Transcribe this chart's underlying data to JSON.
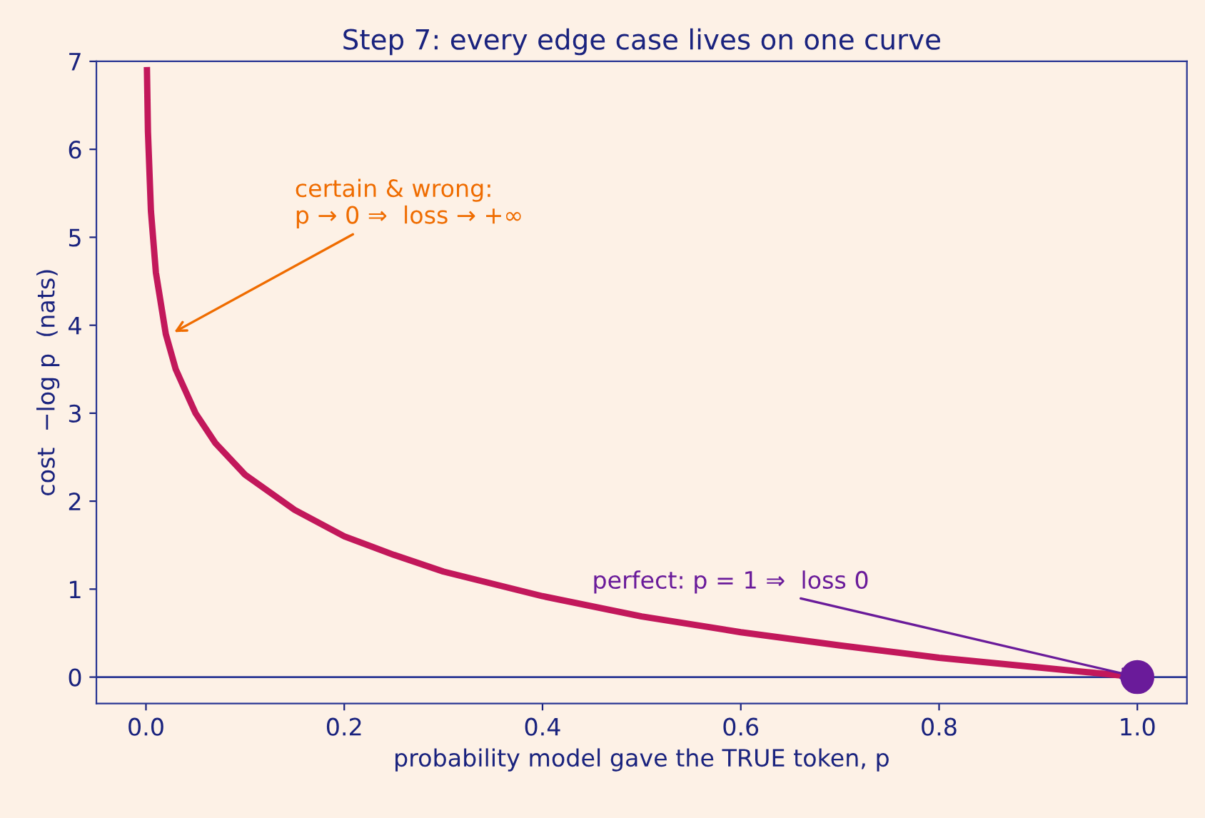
{
  "chart_data": {
    "type": "line",
    "title": "Step 7: every edge case lives on one curve",
    "xlabel": "probability model gave the TRUE token, p",
    "ylabel": "cost  −log p  (nats)",
    "series": [
      {
        "color": "#c2185b",
        "x": [
          0.001,
          0.002,
          0.005,
          0.01,
          0.02,
          0.03,
          0.05,
          0.07,
          0.1,
          0.15,
          0.2,
          0.25,
          0.3,
          0.4,
          0.5,
          0.6,
          0.7,
          0.8,
          0.9,
          1.0
        ],
        "values": [
          6.9,
          6.2,
          5.3,
          4.6,
          3.9,
          3.5,
          3.0,
          2.66,
          2.3,
          1.9,
          1.6,
          1.39,
          1.2,
          0.92,
          0.69,
          0.51,
          0.36,
          0.22,
          0.11,
          0
        ]
      },
      {
        "type": "scatter",
        "color": "#6a1b9a",
        "x": [
          1.0
        ],
        "values": [
          0
        ]
      }
    ],
    "annotations": [
      {
        "text": "certain & wrong:\np → 0 ⇒  loss → +∞",
        "x": 0.025,
        "y": 3.9
      },
      {
        "text": "perfect: p = 1 ⇒  loss 0",
        "x": 1.0,
        "y": 0
      }
    ],
    "ref_lines": [
      {
        "axis": "y",
        "value": 0,
        "color": "#283593"
      }
    ],
    "xlim": [
      -0.05,
      1.05
    ],
    "ylim": [
      -0.3,
      7
    ],
    "xticks": [
      {
        "value": 0,
        "label": "0.0"
      },
      0.2,
      0.4,
      0.6,
      0.8,
      {
        "value": 1,
        "label": "1.0"
      }
    ],
    "yticks": [
      0,
      1,
      2,
      3,
      4,
      5,
      6,
      7
    ],
    "grid": false
  }
}
